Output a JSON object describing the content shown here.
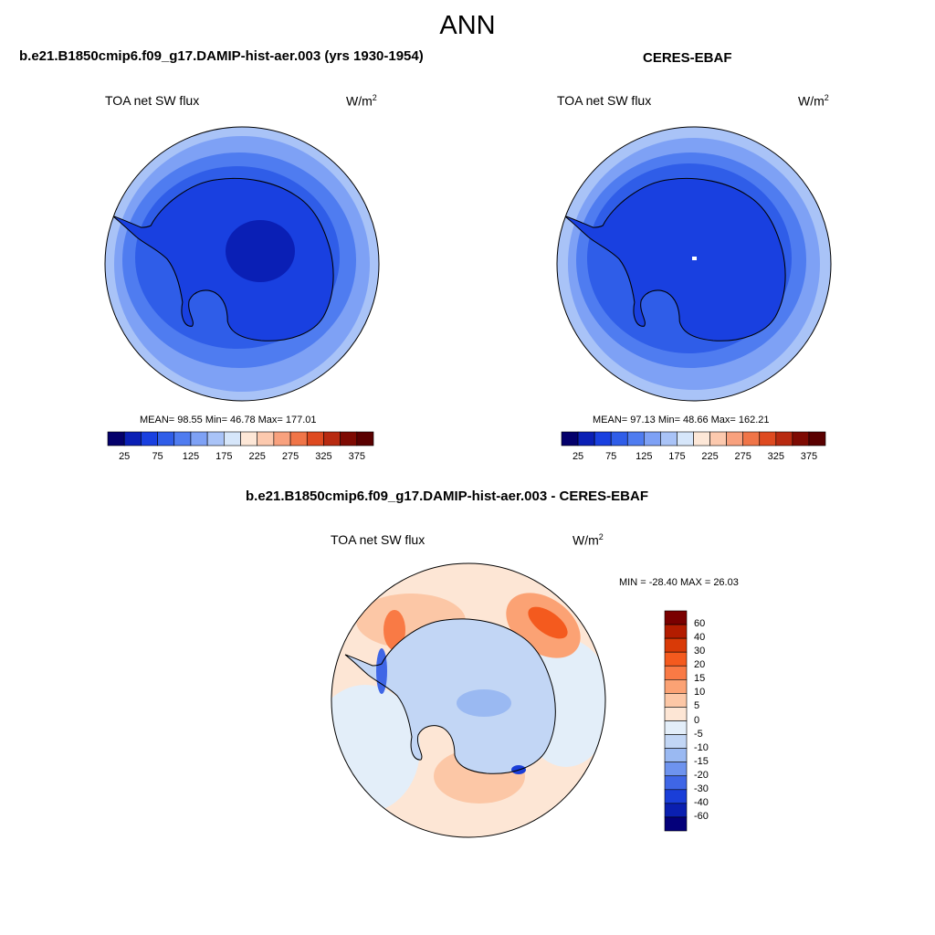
{
  "figure": {
    "title": "ANN"
  },
  "panels": [
    {
      "case_title": "b.e21.B1850cmip6.f09_g17.DAMIP-hist-aer.003 (yrs 1930-1954)",
      "field": "TOA net SW flux",
      "units": "W/m",
      "units_exp": "2",
      "stats": "MEAN=  98.55  Min=  46.78  Max= 177.01",
      "mean": 98.55,
      "min": 46.78,
      "max": 177.01
    },
    {
      "case_title": "CERES-EBAF",
      "field": "TOA net SW flux",
      "units": "W/m",
      "units_exp": "2",
      "stats": "MEAN=  97.13  Min=  48.66  Max= 162.21",
      "mean": 97.13,
      "min": 48.66,
      "max": 162.21
    }
  ],
  "diff_panel": {
    "case_title": "b.e21.B1850cmip6.f09_g17.DAMIP-hist-aer.003 - CERES-EBAF",
    "field": "TOA net SW flux",
    "units": "W/m",
    "units_exp": "2",
    "stats": "MIN = -28.40 MAX =  26.03",
    "min": -28.4,
    "max": 26.03
  },
  "chart_data": [
    {
      "type": "heatmap",
      "projection": "south-polar-stereographic",
      "title": "b.e21.B1850cmip6.f09_g17.DAMIP-hist-aer.003 (yrs 1930-1954)",
      "variable": "TOA net SW flux",
      "units": "W/m2",
      "levels": [
        25,
        50,
        75,
        100,
        125,
        150,
        175,
        200,
        225,
        250,
        275,
        300,
        325,
        350,
        375
      ],
      "colorbar_labels": [
        "25",
        "75",
        "125",
        "175",
        "225",
        "275",
        "325",
        "375"
      ],
      "colors": [
        "#04006b",
        "#0a1fb5",
        "#1940e0",
        "#2f5de8",
        "#4f7cf0",
        "#7ea1f5",
        "#a9c3f7",
        "#d6e6fa",
        "#fde7d7",
        "#fcc9ae",
        "#f8a17e",
        "#f07548",
        "#de4a20",
        "#b82a10",
        "#7e0a02",
        "#5a0000"
      ],
      "mean": 98.55,
      "min": 46.78,
      "max": 177.01
    },
    {
      "type": "heatmap",
      "projection": "south-polar-stereographic",
      "title": "CERES-EBAF",
      "variable": "TOA net SW flux",
      "units": "W/m2",
      "levels": [
        25,
        50,
        75,
        100,
        125,
        150,
        175,
        200,
        225,
        250,
        275,
        300,
        325,
        350,
        375
      ],
      "colorbar_labels": [
        "25",
        "75",
        "125",
        "175",
        "225",
        "275",
        "325",
        "375"
      ],
      "colors": [
        "#04006b",
        "#0a1fb5",
        "#1940e0",
        "#2f5de8",
        "#4f7cf0",
        "#7ea1f5",
        "#a9c3f7",
        "#d6e6fa",
        "#fde7d7",
        "#fcc9ae",
        "#f8a17e",
        "#f07548",
        "#de4a20",
        "#b82a10",
        "#7e0a02",
        "#5a0000"
      ],
      "mean": 97.13,
      "min": 48.66,
      "max": 162.21
    },
    {
      "type": "heatmap",
      "projection": "south-polar-stereographic",
      "title": "b.e21.B1850cmip6.f09_g17.DAMIP-hist-aer.003 - CERES-EBAF",
      "variable": "TOA net SW flux",
      "units": "W/m2",
      "levels": [
        -60,
        -40,
        -30,
        -20,
        -15,
        -10,
        -5,
        0,
        5,
        10,
        15,
        20,
        30,
        40,
        60
      ],
      "colorbar_labels": [
        "60",
        "40",
        "30",
        "20",
        "15",
        "10",
        "5",
        "0",
        "-5",
        "-10",
        "-15",
        "-20",
        "-30",
        "-40",
        "-60"
      ],
      "colors": [
        "#7a0000",
        "#b31c00",
        "#d93a07",
        "#f45a1e",
        "#f97a45",
        "#fba274",
        "#fcc7a6",
        "#fde6d5",
        "#e3eef9",
        "#c2d6f5",
        "#9ab9f2",
        "#6e93ee",
        "#3f66e6",
        "#1a3ed8",
        "#0a1fb0",
        "#04007a"
      ],
      "min": -28.4,
      "max": 26.03
    }
  ]
}
